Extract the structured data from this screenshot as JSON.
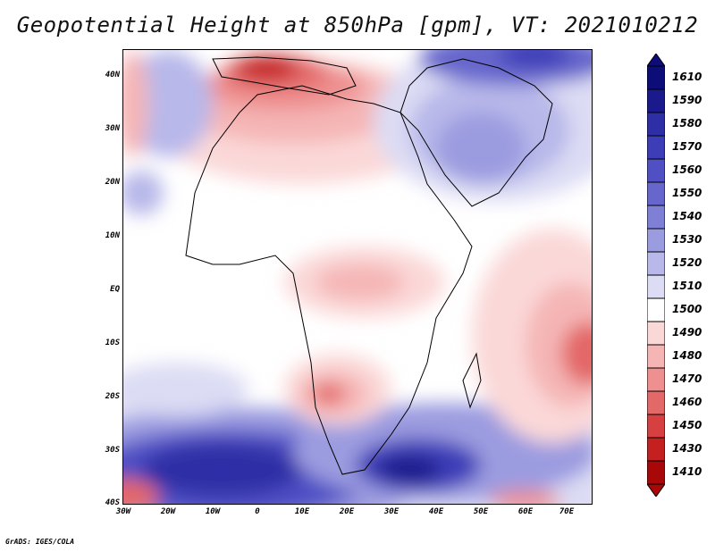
{
  "title": "Geopotential Height at 850hPa [gpm], VT: 2021010212",
  "credit": "GrADS: IGES/COLA",
  "map": {
    "variable": "Geopotential Height",
    "level": "850hPa",
    "units": "gpm",
    "valid_time": "2021010212",
    "lon_range": [
      -30,
      75
    ],
    "lat_range": [
      -40,
      45
    ],
    "lat_labels": [
      "40N",
      "30N",
      "20N",
      "10N",
      "EQ",
      "10S",
      "20S",
      "30S",
      "40S"
    ],
    "lon_labels": [
      "30W",
      "20W",
      "10W",
      "0",
      "10E",
      "20E",
      "30E",
      "40E",
      "50E",
      "60E",
      "70E"
    ],
    "features": [
      {
        "name": "north-africa-mediterranean-low-heights",
        "value_range": "1460-1480"
      },
      {
        "name": "arabian-high-heights",
        "value_range": "1530-1560"
      },
      {
        "name": "southern-ocean-high-heights",
        "value_range": "1560-1580"
      },
      {
        "name": "south-indian-ocean-low",
        "value_range": "1460"
      }
    ]
  },
  "colorbar": {
    "levels": [
      1610,
      1590,
      1580,
      1570,
      1560,
      1550,
      1540,
      1530,
      1520,
      1510,
      1500,
      1490,
      1480,
      1470,
      1460,
      1450,
      1430,
      1410
    ],
    "colors": [
      "#0d0d7a",
      "#1a1a8c",
      "#2e2ea6",
      "#3d3db8",
      "#5050c4",
      "#6666cc",
      "#7f7fd6",
      "#9b9be0",
      "#b8b8ea",
      "#dcdcf4",
      "#ffffff",
      "#fbd8d8",
      "#f5b5b5",
      "#ee9090",
      "#e36868",
      "#d64040",
      "#c42020",
      "#a80808"
    ]
  }
}
